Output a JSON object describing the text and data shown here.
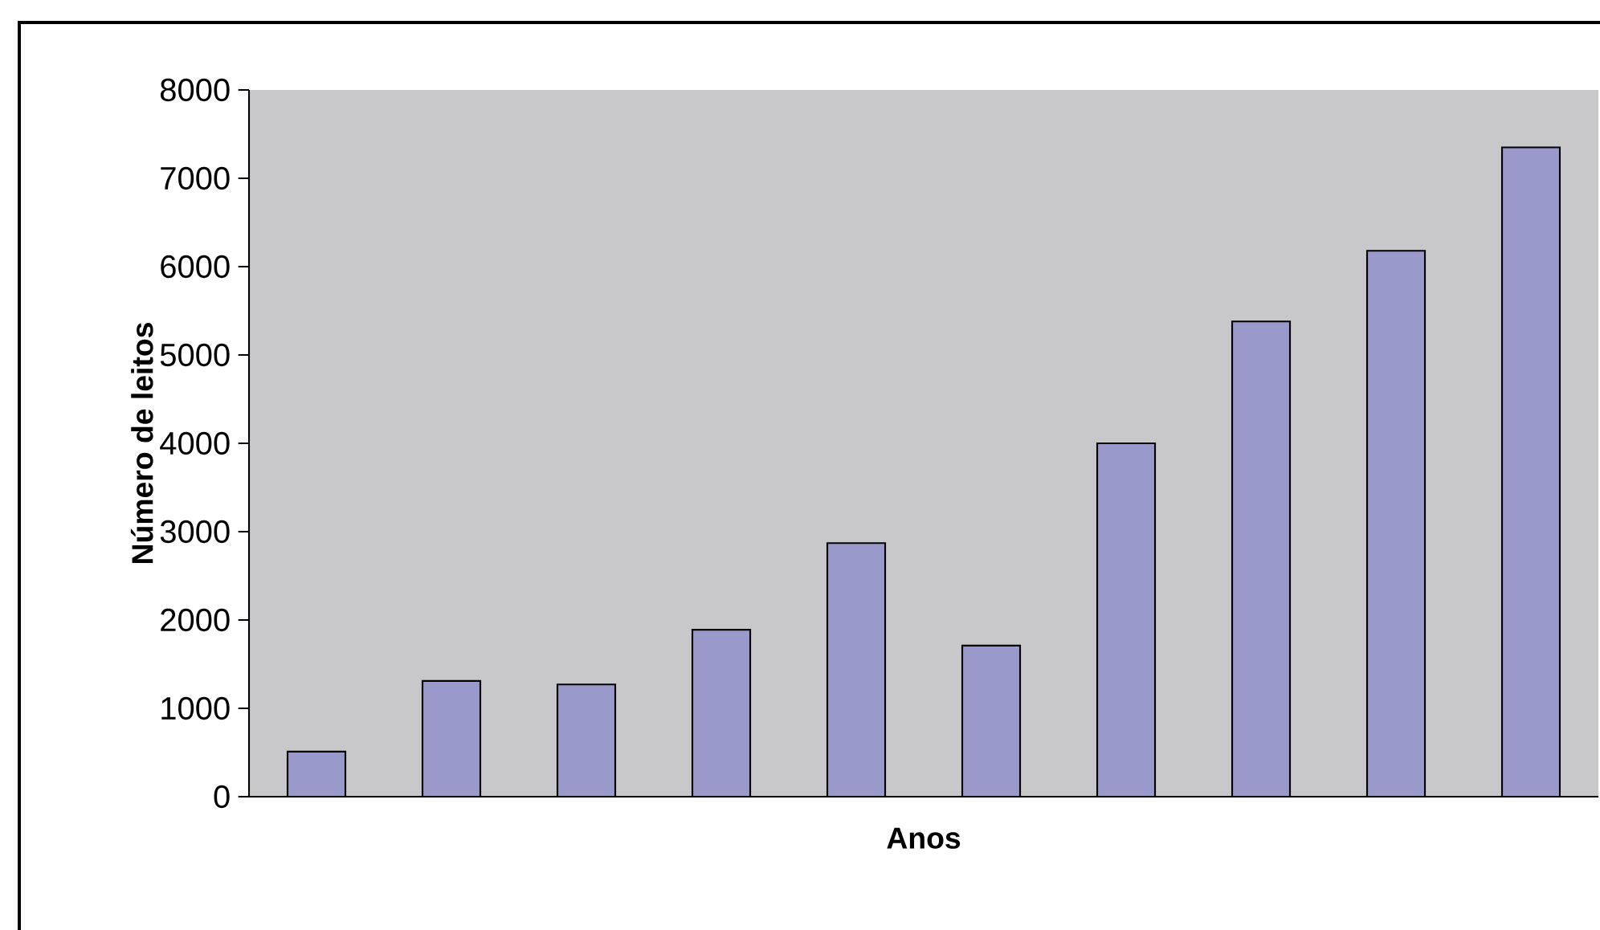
{
  "chart_data": {
    "type": "bar",
    "xlabel": "Anos",
    "ylabel": "Número de leitos",
    "categories": [
      null,
      null,
      null,
      null,
      null,
      null,
      null,
      null,
      null,
      null
    ],
    "values": [
      510,
      1310,
      1270,
      1890,
      2870,
      1710,
      4000,
      5380,
      6180,
      7350
    ],
    "color": "#9999cc",
    "ylim": [
      0,
      8000
    ],
    "yticks": [
      0,
      1000,
      2000,
      3000,
      4000,
      5000,
      6000,
      7000,
      8000
    ],
    "tick_labels": "y"
  }
}
